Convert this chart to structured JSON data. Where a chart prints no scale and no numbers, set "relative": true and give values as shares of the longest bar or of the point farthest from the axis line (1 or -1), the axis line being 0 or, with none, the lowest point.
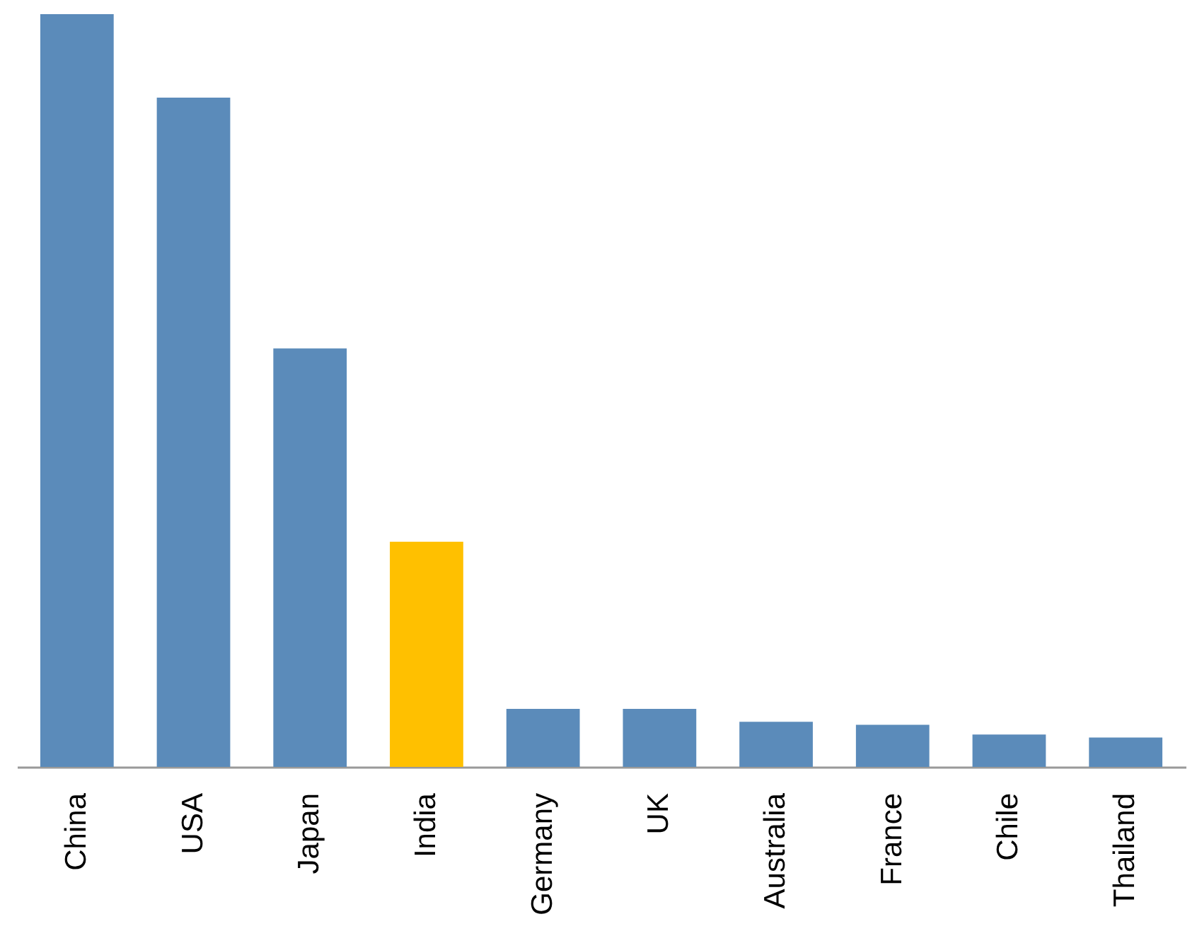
{
  "chart_data": {
    "type": "bar",
    "relative": true,
    "categories": [
      "China",
      "USA",
      "Japan",
      "India",
      "Germany",
      "UK",
      "Australia",
      "France",
      "Chile",
      "Thailand"
    ],
    "values": [
      1,
      0.889,
      0.556,
      0.299,
      0.077,
      0.077,
      0.06,
      0.056,
      0.043,
      0.039
    ],
    "colors": [
      "#5b8bba",
      "#5b8bba",
      "#5b8bba",
      "#ffc000",
      "#5b8bba",
      "#5b8bba",
      "#5b8bba",
      "#5b8bba",
      "#5b8bba",
      "#5b8bba"
    ]
  }
}
